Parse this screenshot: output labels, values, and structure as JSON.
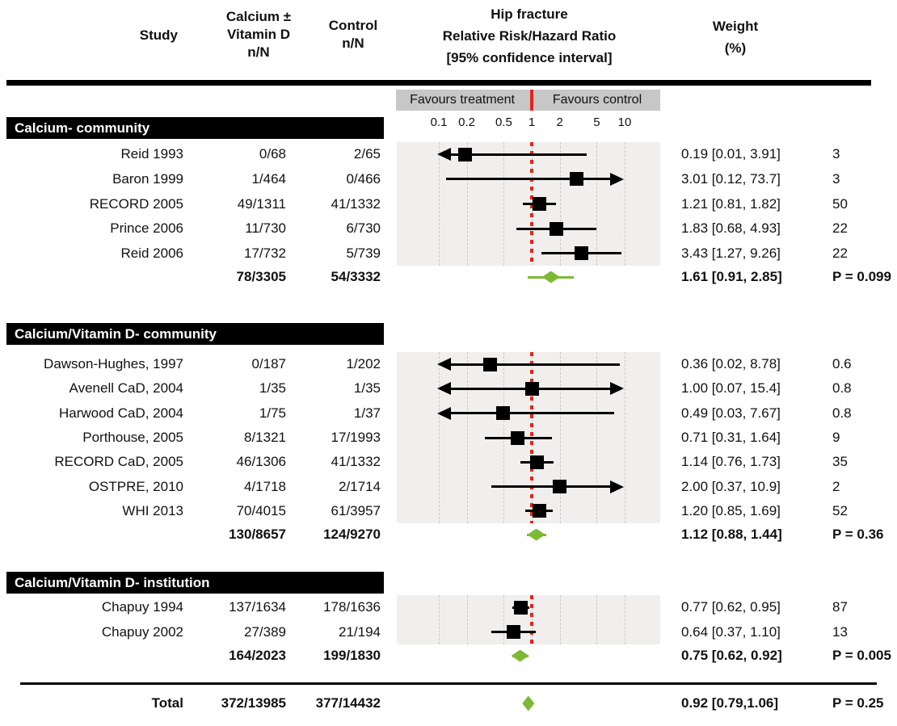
{
  "header": {
    "study": "Study",
    "treatment_col": "Calcium ±\nVitamin D\nn/N",
    "control_col": "Control\nn/N",
    "effect_col": "Hip fracture\nRelative Risk/Hazard Ratio\n[95% confidence interval]",
    "weight_col": "Weight\n(%)"
  },
  "favours": {
    "left": "Favours treatment",
    "right": "Favours control"
  },
  "axis_tick_labels": [
    "0.1",
    "0.2",
    "0.5",
    "1",
    "2",
    "5",
    "10"
  ],
  "chart_data": {
    "type": "forest",
    "scale": "log",
    "x_ticks": [
      0.1,
      0.2,
      0.5,
      1,
      2,
      5,
      10
    ],
    "x_range": [
      0.1,
      10
    ],
    "null_value": 1,
    "sections": [
      {
        "label": "Calcium- community",
        "studies": [
          {
            "study": "Reid 1993",
            "treatment_nN": "0/68",
            "control_nN": "2/65",
            "est": 0.19,
            "lo": 0.01,
            "hi": 3.91,
            "ci_text": "0.19 [0.01, 3.91]",
            "weight": "3"
          },
          {
            "study": "Baron 1999",
            "treatment_nN": "1/464",
            "control_nN": "0/466",
            "est": 3.01,
            "lo": 0.12,
            "hi": 73.7,
            "ci_text": "3.01 [0.12, 73.7]",
            "weight": "3"
          },
          {
            "study": "RECORD 2005",
            "treatment_nN": "49/1311",
            "control_nN": "41/1332",
            "est": 1.21,
            "lo": 0.81,
            "hi": 1.82,
            "ci_text": "1.21 [0.81, 1.82]",
            "weight": "50"
          },
          {
            "study": "Prince 2006",
            "treatment_nN": "11/730",
            "control_nN": "6/730",
            "est": 1.83,
            "lo": 0.68,
            "hi": 4.93,
            "ci_text": "1.83 [0.68, 4.93]",
            "weight": "22"
          },
          {
            "study": "Reid 2006",
            "treatment_nN": "17/732",
            "control_nN": "5/739",
            "est": 3.43,
            "lo": 1.27,
            "hi": 9.26,
            "ci_text": "3.43 [1.27, 9.26]",
            "weight": "22"
          }
        ],
        "subtotal": {
          "treatment_nN": "78/3305",
          "control_nN": "54/3332",
          "est": 1.61,
          "lo": 0.91,
          "hi": 2.85,
          "ci_text": "1.61 [0.91, 2.85]",
          "p": "P = 0.099"
        }
      },
      {
        "label": "Calcium/Vitamin D- community",
        "studies": [
          {
            "study": "Dawson-Hughes, 1997",
            "treatment_nN": "0/187",
            "control_nN": "1/202",
            "est": 0.36,
            "lo": 0.02,
            "hi": 8.78,
            "ci_text": "0.36 [0.02, 8.78]",
            "weight": "0.6"
          },
          {
            "study": "Avenell CaD, 2004",
            "treatment_nN": "1/35",
            "control_nN": "1/35",
            "est": 1.0,
            "lo": 0.07,
            "hi": 15.4,
            "ci_text": "1.00 [0.07, 15.4]",
            "weight": "0.8"
          },
          {
            "study": "Harwood CaD, 2004",
            "treatment_nN": "1/75",
            "control_nN": "1/37",
            "est": 0.49,
            "lo": 0.03,
            "hi": 7.67,
            "ci_text": "0.49 [0.03, 7.67]",
            "weight": "0.8"
          },
          {
            "study": "Porthouse, 2005",
            "treatment_nN": "8/1321",
            "control_nN": "17/1993",
            "est": 0.71,
            "lo": 0.31,
            "hi": 1.64,
            "ci_text": "0.71 [0.31, 1.64]",
            "weight": "9"
          },
          {
            "study": "RECORD CaD, 2005",
            "treatment_nN": "46/1306",
            "control_nN": "41/1332",
            "est": 1.14,
            "lo": 0.76,
            "hi": 1.73,
            "ci_text": "1.14 [0.76, 1.73]",
            "weight": "35"
          },
          {
            "study": "OSTPRE, 2010",
            "treatment_nN": "4/1718",
            "control_nN": "2/1714",
            "est": 2.0,
            "lo": 0.37,
            "hi": 10.9,
            "ci_text": "2.00 [0.37, 10.9]",
            "weight": "2"
          },
          {
            "study": "WHI 2013",
            "treatment_nN": "70/4015",
            "control_nN": "61/3957",
            "est": 1.2,
            "lo": 0.85,
            "hi": 1.69,
            "ci_text": "1.20 [0.85, 1.69]",
            "weight": "52"
          }
        ],
        "subtotal": {
          "treatment_nN": "130/8657",
          "control_nN": "124/9270",
          "est": 1.12,
          "lo": 0.88,
          "hi": 1.44,
          "ci_text": "1.12 [0.88, 1.44]",
          "p": "P = 0.36"
        }
      },
      {
        "label": "Calcium/Vitamin D- institution",
        "studies": [
          {
            "study": "Chapuy 1994",
            "treatment_nN": "137/1634",
            "control_nN": "178/1636",
            "est": 0.77,
            "lo": 0.62,
            "hi": 0.95,
            "ci_text": "0.77 [0.62, 0.95]",
            "weight": "87"
          },
          {
            "study": "Chapuy 2002",
            "treatment_nN": "27/389",
            "control_nN": "21/194",
            "est": 0.64,
            "lo": 0.37,
            "hi": 1.1,
            "ci_text": "0.64 [0.37, 1.10]",
            "weight": "13"
          }
        ],
        "subtotal": {
          "treatment_nN": "164/2023",
          "control_nN": "199/1830",
          "est": 0.75,
          "lo": 0.62,
          "hi": 0.92,
          "ci_text": "0.75 [0.62, 0.92]",
          "p": "P = 0.005"
        }
      }
    ],
    "total": {
      "label": "Total",
      "treatment_nN": "372/13985",
      "control_nN": "377/14432",
      "est": 0.92,
      "lo": 0.79,
      "hi": 1.06,
      "ci_text": "0.92 [0.79,1.06]",
      "p": "P = 0.25"
    }
  },
  "colors": {
    "summary_green": "#7cba33",
    "null_line_red": "#e8231a",
    "section_band_bg": "#000000",
    "section_band_text": "#ffffff",
    "plot_bg": "#f0efed",
    "favours_bar_bg": "#c7c7c7",
    "gridline": "#c9c9c9"
  }
}
